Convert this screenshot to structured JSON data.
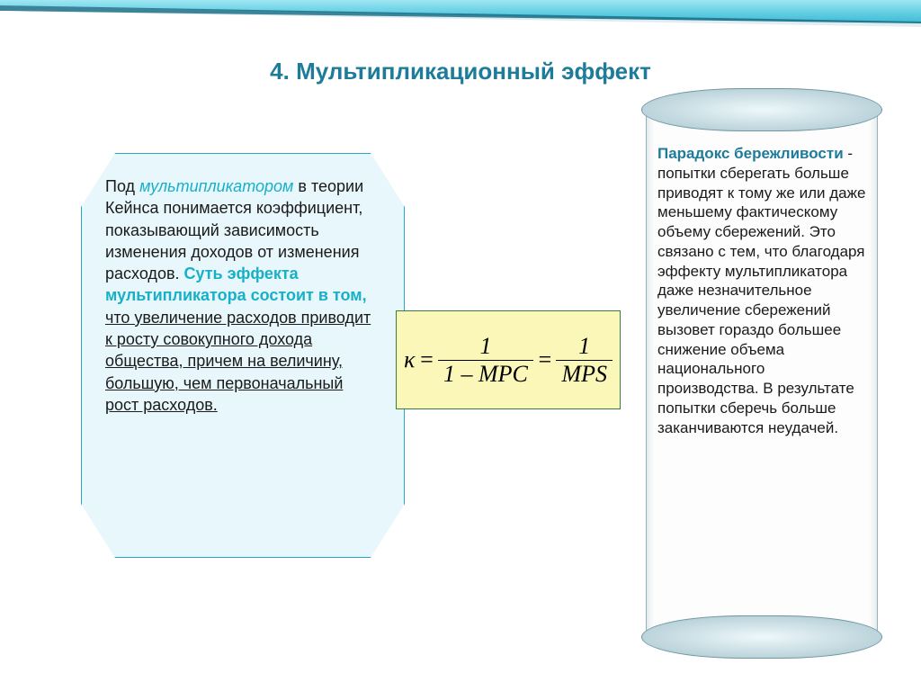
{
  "title": "4. Мультипликационный эффект",
  "colors": {
    "title": "#1e7b99",
    "teal_text": "#18b0c9",
    "hex_bg": "#e8f7fb",
    "hex_border": "#2aa3c4",
    "formula_bg": "#fbf7b9",
    "formula_border": "#3a7a46",
    "scroll_heading": "#1e7b99"
  },
  "fonts": {
    "body_family": "Arial",
    "body_size_pt": 13,
    "title_size_pt": 20,
    "formula_family": "Times New Roman",
    "formula_size_pt": 20
  },
  "left_panel": {
    "lead_1": "Под ",
    "term_1": "мультипликатором",
    "body_1": " в теории Кейнса понимается коэффициент, показывающий зависимость изменения доходов от изменения расходов. ",
    "emph": "Суть эффекта мультипликатора состоит в том,",
    "body_2_ul": " что увеличение расходов приводит к росту совокупного дохода общества, причем на величину, большую, чем первоначальный рост расходов."
  },
  "formula": {
    "lhs": "κ",
    "frac1_num": "1",
    "frac1_den_a": "1",
    "frac1_den_b": "MPC",
    "frac2_num": "1",
    "frac2_den": "MPS"
  },
  "scroll_panel": {
    "heading": "Парадокс бережливости",
    "dash": " - ",
    "body": " попытки сберегать больше приводят к тому же или даже меньшему фактическому объему сбережений. Это связано с тем, что благодаря эффекту мультипликатора даже незначительное увеличение сбережений вызовет гораздо большее снижение объема национального производства. В результате попытки сберечь больше заканчиваются неудачей."
  }
}
